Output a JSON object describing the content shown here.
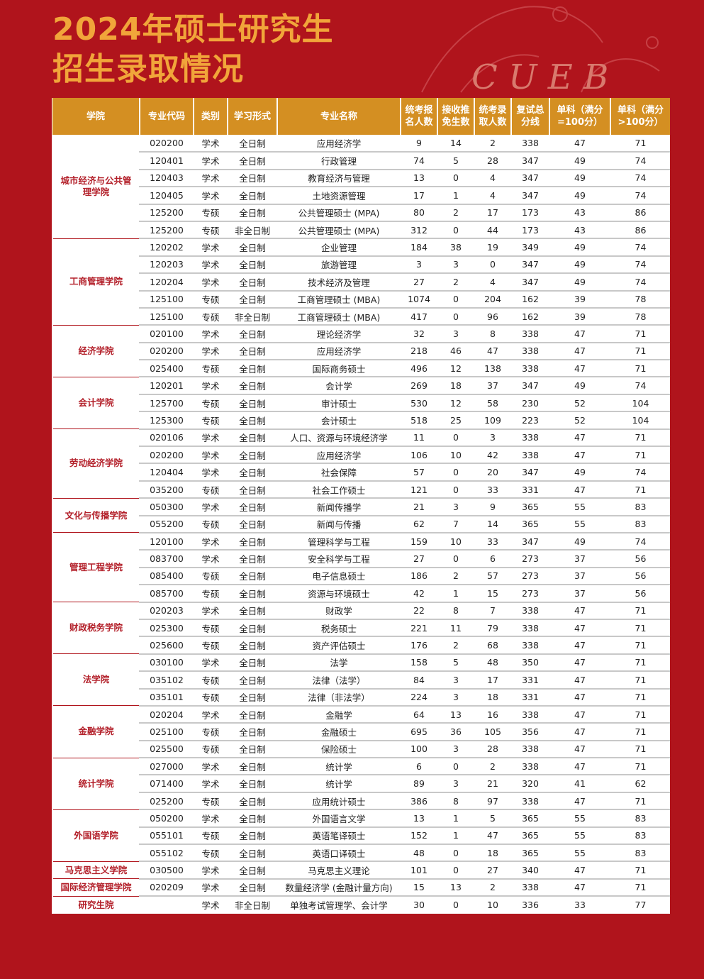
{
  "title": {
    "line1": "2024年硕士研究生",
    "line2": "招生录取情况"
  },
  "logo_text": "CUEB",
  "colors": {
    "background": "#b0141c",
    "title": "#f1a53a",
    "header": "#d48f22",
    "college_text": "#b3202a"
  },
  "table": {
    "headers": [
      "学院",
      "专业代码",
      "类别",
      "学习形式",
      "专业名称",
      "统考报名人数",
      "接收推免生数",
      "统考录取人数",
      "复试总分线",
      "单科（满分=100分）",
      "单科（满分>100分）"
    ],
    "groups": [
      {
        "college": "城市经济与公共管理学院",
        "rows": [
          [
            "020200",
            "学术",
            "全日制",
            "应用经济学",
            "9",
            "14",
            "2",
            "338",
            "47",
            "71"
          ],
          [
            "120401",
            "学术",
            "全日制",
            "行政管理",
            "74",
            "5",
            "28",
            "347",
            "49",
            "74"
          ],
          [
            "120403",
            "学术",
            "全日制",
            "教育经济与管理",
            "13",
            "0",
            "4",
            "347",
            "49",
            "74"
          ],
          [
            "120405",
            "学术",
            "全日制",
            "土地资源管理",
            "17",
            "1",
            "4",
            "347",
            "49",
            "74"
          ],
          [
            "125200",
            "专硕",
            "全日制",
            "公共管理硕士 (MPA)",
            "80",
            "2",
            "17",
            "173",
            "43",
            "86"
          ],
          [
            "125200",
            "专硕",
            "非全日制",
            "公共管理硕士 (MPA)",
            "312",
            "0",
            "44",
            "173",
            "43",
            "86"
          ]
        ]
      },
      {
        "college": "工商管理学院",
        "rows": [
          [
            "120202",
            "学术",
            "全日制",
            "企业管理",
            "184",
            "38",
            "19",
            "349",
            "49",
            "74"
          ],
          [
            "120203",
            "学术",
            "全日制",
            "旅游管理",
            "3",
            "3",
            "0",
            "347",
            "49",
            "74"
          ],
          [
            "120204",
            "学术",
            "全日制",
            "技术经济及管理",
            "27",
            "2",
            "4",
            "347",
            "49",
            "74"
          ],
          [
            "125100",
            "专硕",
            "全日制",
            "工商管理硕士 (MBA)",
            "1074",
            "0",
            "204",
            "162",
            "39",
            "78"
          ],
          [
            "125100",
            "专硕",
            "非全日制",
            "工商管理硕士 (MBA)",
            "417",
            "0",
            "96",
            "162",
            "39",
            "78"
          ]
        ]
      },
      {
        "college": "经济学院",
        "rows": [
          [
            "020100",
            "学术",
            "全日制",
            "理论经济学",
            "32",
            "3",
            "8",
            "338",
            "47",
            "71"
          ],
          [
            "020200",
            "学术",
            "全日制",
            "应用经济学",
            "218",
            "46",
            "47",
            "338",
            "47",
            "71"
          ],
          [
            "025400",
            "专硕",
            "全日制",
            "国际商务硕士",
            "496",
            "12",
            "138",
            "338",
            "47",
            "71"
          ]
        ]
      },
      {
        "college": "会计学院",
        "rows": [
          [
            "120201",
            "学术",
            "全日制",
            "会计学",
            "269",
            "18",
            "37",
            "347",
            "49",
            "74"
          ],
          [
            "125700",
            "专硕",
            "全日制",
            "审计硕士",
            "530",
            "12",
            "58",
            "230",
            "52",
            "104"
          ],
          [
            "125300",
            "专硕",
            "全日制",
            "会计硕士",
            "518",
            "25",
            "109",
            "223",
            "52",
            "104"
          ]
        ]
      },
      {
        "college": "劳动经济学院",
        "rows": [
          [
            "020106",
            "学术",
            "全日制",
            "人口、资源与环境经济学",
            "11",
            "0",
            "3",
            "338",
            "47",
            "71"
          ],
          [
            "020200",
            "学术",
            "全日制",
            "应用经济学",
            "106",
            "10",
            "42",
            "338",
            "47",
            "71"
          ],
          [
            "120404",
            "学术",
            "全日制",
            "社会保障",
            "57",
            "0",
            "20",
            "347",
            "49",
            "74"
          ],
          [
            "035200",
            "专硕",
            "全日制",
            "社会工作硕士",
            "121",
            "0",
            "33",
            "331",
            "47",
            "71"
          ]
        ]
      },
      {
        "college": "文化与传播学院",
        "rows": [
          [
            "050300",
            "学术",
            "全日制",
            "新闻传播学",
            "21",
            "3",
            "9",
            "365",
            "55",
            "83"
          ],
          [
            "055200",
            "专硕",
            "全日制",
            "新闻与传播",
            "62",
            "7",
            "14",
            "365",
            "55",
            "83"
          ]
        ]
      },
      {
        "college": "管理工程学院",
        "rows": [
          [
            "120100",
            "学术",
            "全日制",
            "管理科学与工程",
            "159",
            "10",
            "33",
            "347",
            "49",
            "74"
          ],
          [
            "083700",
            "学术",
            "全日制",
            "安全科学与工程",
            "27",
            "0",
            "6",
            "273",
            "37",
            "56"
          ],
          [
            "085400",
            "专硕",
            "全日制",
            "电子信息硕士",
            "186",
            "2",
            "57",
            "273",
            "37",
            "56"
          ],
          [
            "085700",
            "专硕",
            "全日制",
            "资源与环境硕士",
            "42",
            "1",
            "15",
            "273",
            "37",
            "56"
          ]
        ]
      },
      {
        "college": "财政税务学院",
        "rows": [
          [
            "020203",
            "学术",
            "全日制",
            "财政学",
            "22",
            "8",
            "7",
            "338",
            "47",
            "71"
          ],
          [
            "025300",
            "专硕",
            "全日制",
            "税务硕士",
            "221",
            "11",
            "79",
            "338",
            "47",
            "71"
          ],
          [
            "025600",
            "专硕",
            "全日制",
            "资产评估硕士",
            "176",
            "2",
            "68",
            "338",
            "47",
            "71"
          ]
        ]
      },
      {
        "college": "法学院",
        "rows": [
          [
            "030100",
            "学术",
            "全日制",
            "法学",
            "158",
            "5",
            "48",
            "350",
            "47",
            "71"
          ],
          [
            "035102",
            "专硕",
            "全日制",
            "法律（法学）",
            "84",
            "3",
            "17",
            "331",
            "47",
            "71"
          ],
          [
            "035101",
            "专硕",
            "全日制",
            "法律（非法学）",
            "224",
            "3",
            "18",
            "331",
            "47",
            "71"
          ]
        ]
      },
      {
        "college": "金融学院",
        "rows": [
          [
            "020204",
            "学术",
            "全日制",
            "金融学",
            "64",
            "13",
            "16",
            "338",
            "47",
            "71"
          ],
          [
            "025100",
            "专硕",
            "全日制",
            "金融硕士",
            "695",
            "36",
            "105",
            "356",
            "47",
            "71"
          ],
          [
            "025500",
            "专硕",
            "全日制",
            "保险硕士",
            "100",
            "3",
            "28",
            "338",
            "47",
            "71"
          ]
        ]
      },
      {
        "college": "统计学院",
        "rows": [
          [
            "027000",
            "学术",
            "全日制",
            "统计学",
            "6",
            "0",
            "2",
            "338",
            "47",
            "71"
          ],
          [
            "071400",
            "学术",
            "全日制",
            "统计学",
            "89",
            "3",
            "21",
            "320",
            "41",
            "62"
          ],
          [
            "025200",
            "专硕",
            "全日制",
            "应用统计硕士",
            "386",
            "8",
            "97",
            "338",
            "47",
            "71"
          ]
        ]
      },
      {
        "college": "外国语学院",
        "rows": [
          [
            "050200",
            "学术",
            "全日制",
            "外国语言文学",
            "13",
            "1",
            "5",
            "365",
            "55",
            "83"
          ],
          [
            "055101",
            "专硕",
            "全日制",
            "英语笔译硕士",
            "152",
            "1",
            "47",
            "365",
            "55",
            "83"
          ],
          [
            "055102",
            "专硕",
            "全日制",
            "英语口译硕士",
            "48",
            "0",
            "18",
            "365",
            "55",
            "83"
          ]
        ]
      },
      {
        "college": "马克思主义学院",
        "rows": [
          [
            "030500",
            "学术",
            "全日制",
            "马克思主义理论",
            "101",
            "0",
            "27",
            "340",
            "47",
            "71"
          ]
        ]
      },
      {
        "college": "国际经济管理学院",
        "rows": [
          [
            "020209",
            "学术",
            "全日制",
            "数量经济学 (金融计量方向)",
            "15",
            "13",
            "2",
            "338",
            "47",
            "71"
          ]
        ]
      },
      {
        "college": "研究生院",
        "rows": [
          [
            "",
            "学术",
            "非全日制",
            "单独考试管理学、会计学",
            "30",
            "0",
            "10",
            "336",
            "33",
            "77"
          ]
        ]
      }
    ]
  }
}
